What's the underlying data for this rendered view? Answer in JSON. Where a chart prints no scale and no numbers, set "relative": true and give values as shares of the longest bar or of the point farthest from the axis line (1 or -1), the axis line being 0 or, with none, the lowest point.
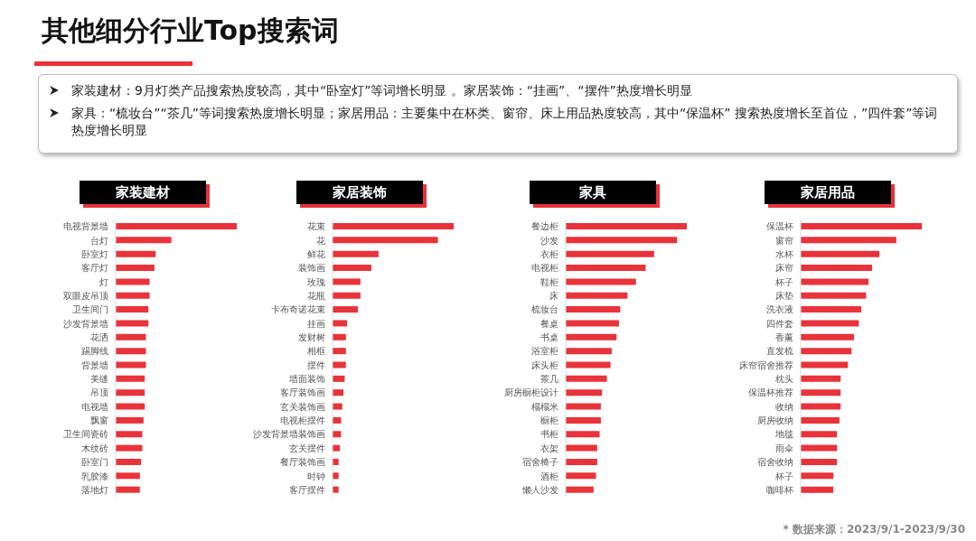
{
  "chart_data": [
    {
      "type": "other",
      "title": "其他细分行业Top搜索词",
      "annotations": [
        "家装建材：9月灯类产品搜索热度较高，其中“卧室灯”等词增长明显 。家居装饰：“挂画”、“摆件”热度增长明显",
        "家具：“梳妆台”“茶几”等词搜索热度增长明显；家居用品：主要集中在杯类、窗帘、床上用品热度较高，其中“保温杯” 搜索热度增长至首位，”四件套”等词热度增长明显",
        "* 数据来源：2023/9/1-2023/9/30"
      ]
    },
    {
      "type": "bar",
      "orientation": "horizontal",
      "relative": true,
      "title": "家装建材",
      "color": "#e8333a",
      "categories": [
        "电视背景墙",
        "台灯",
        "卧室灯",
        "客厅灯",
        "灯",
        "双眼皮吊顶",
        "卫生间门",
        "沙发背景墙",
        "花洒",
        "踢脚线",
        "背景墙",
        "美缝",
        "吊顶",
        "电视墙",
        "飘窗",
        "卫生间瓷砖",
        "木纹砖",
        "卧室门",
        "乳胶漆",
        "落地灯"
      ],
      "values": [
        1,
        0.46,
        0.33,
        0.32,
        0.28,
        0.28,
        0.27,
        0.27,
        0.25,
        0.25,
        0.25,
        0.24,
        0.24,
        0.24,
        0.23,
        0.22,
        0.22,
        0.21,
        0.2,
        0.2
      ]
    },
    {
      "type": "bar",
      "orientation": "horizontal",
      "relative": true,
      "title": "家居装饰",
      "color": "#e8333a",
      "categories": [
        "花束",
        "花",
        "鲜花",
        "装饰画",
        "玫瑰",
        "花瓶",
        "卡布奇诺花束",
        "挂画",
        "发财树",
        "相框",
        "摆件",
        "墙面装饰",
        "客厅装饰画",
        "玄关装饰画",
        "电视柜摆件",
        "沙发背景墙装饰画",
        "玄关摆件",
        "餐厅装饰画",
        "时钟",
        "客厅摆件"
      ],
      "values": [
        1,
        0.87,
        0.38,
        0.32,
        0.23,
        0.23,
        0.21,
        0.12,
        0.11,
        0.11,
        0.11,
        0.1,
        0.09,
        0.08,
        0.07,
        0.07,
        0.06,
        0.05,
        0.05,
        0.05
      ]
    },
    {
      "type": "bar",
      "orientation": "horizontal",
      "relative": true,
      "title": "家具",
      "color": "#e8333a",
      "categories": [
        "餐边柜",
        "沙发",
        "衣柜",
        "电视柜",
        "鞋柜",
        "床",
        "梳妆台",
        "餐桌",
        "书桌",
        "浴室柜",
        "床头柜",
        "茶几",
        "厨房橱柜设计",
        "榻榻米",
        "橱柜",
        "书柜",
        "衣架",
        "宿舍椅子",
        "酒柜",
        "懒人沙发"
      ],
      "values": [
        1,
        0.92,
        0.73,
        0.66,
        0.58,
        0.51,
        0.45,
        0.44,
        0.42,
        0.38,
        0.37,
        0.34,
        0.3,
        0.29,
        0.29,
        0.28,
        0.26,
        0.26,
        0.25,
        0.23
      ]
    },
    {
      "type": "bar",
      "orientation": "horizontal",
      "relative": true,
      "title": "家居用品",
      "color": "#e8333a",
      "categories": [
        "保温杯",
        "窗帘",
        "水杯",
        "床帘",
        "杯子",
        "床垫",
        "洗衣液",
        "四件套",
        "香薰",
        "直发梳",
        "床帘宿舍推荐",
        "枕头",
        "保温杯推荐",
        "收纳",
        "厨房收纳",
        "地毯",
        "雨伞",
        "宿舍收纳",
        "杯子",
        "咖啡杯"
      ],
      "values": [
        1,
        0.79,
        0.65,
        0.59,
        0.56,
        0.54,
        0.5,
        0.48,
        0.44,
        0.42,
        0.39,
        0.33,
        0.33,
        0.33,
        0.32,
        0.3,
        0.3,
        0.3,
        0.27,
        0.27
      ]
    }
  ]
}
